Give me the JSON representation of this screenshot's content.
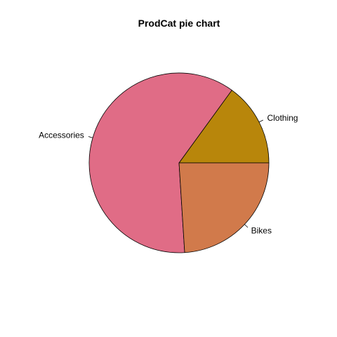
{
  "chart_data": {
    "type": "pie",
    "title": "ProdCat pie chart",
    "categories": [
      "Clothing",
      "Accessories",
      "Bikes"
    ],
    "values": [
      15,
      61,
      24
    ],
    "colors": [
      "#B8860B",
      "#E06C86",
      "#D17A4B"
    ],
    "start_angle_deg": 0,
    "direction": "counterclockwise",
    "legend": "none"
  }
}
